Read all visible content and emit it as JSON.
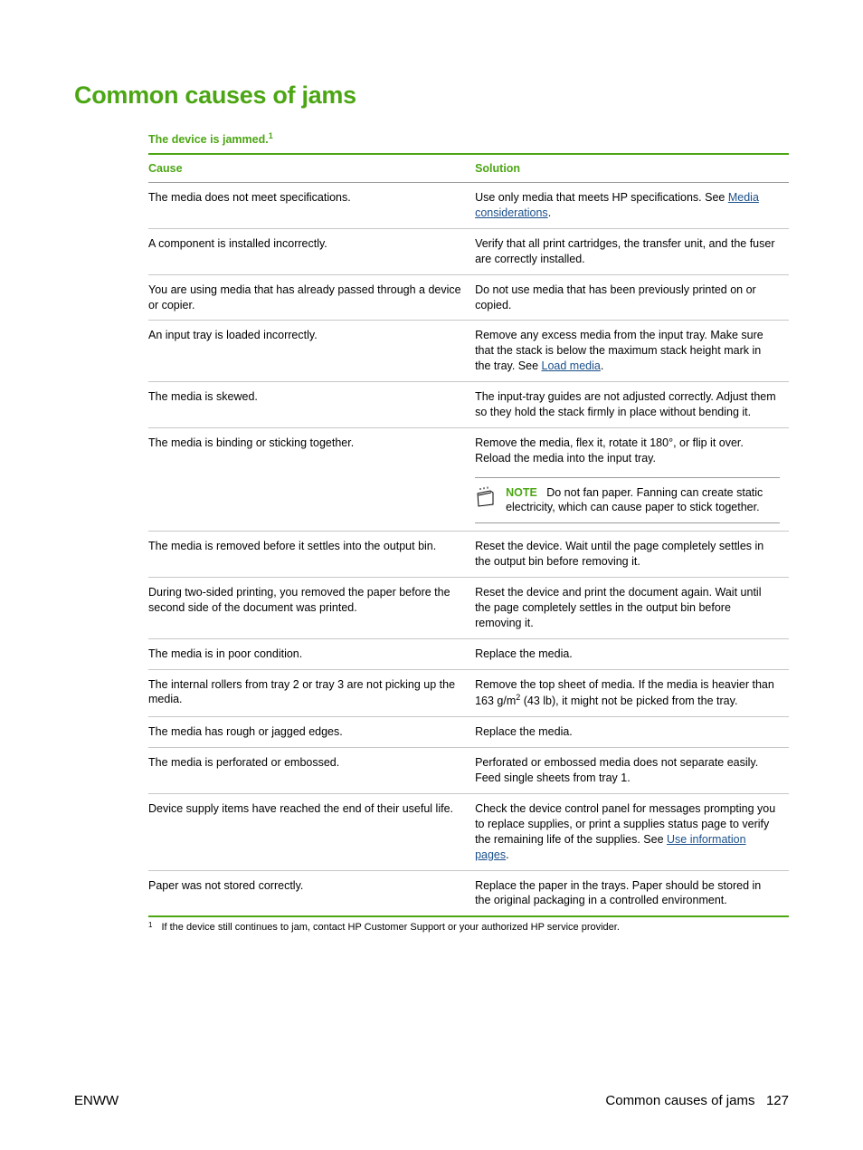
{
  "colors": {
    "accent": "#4ca614",
    "link": "#1a4f8a",
    "rule_thick": "#4ca614",
    "rule_thin": "#c7c7c7",
    "text": "#000000",
    "background": "#ffffff"
  },
  "title": "Common causes of jams",
  "table": {
    "caption": "The device is jammed.",
    "caption_sup": "1",
    "headers": {
      "cause": "Cause",
      "solution": "Solution"
    },
    "rows": [
      {
        "cause": "The media does not meet specifications.",
        "solution_pre": "Use only media that meets HP specifications. See ",
        "solution_link": "Media considerations",
        "solution_post": "."
      },
      {
        "cause": "A component is installed incorrectly.",
        "solution": "Verify that all print cartridges, the transfer unit, and the fuser are correctly installed."
      },
      {
        "cause": "You are using media that has already passed through a device or copier.",
        "solution": "Do not use media that has been previously printed on or copied."
      },
      {
        "cause": "An input tray is loaded incorrectly.",
        "solution_pre": "Remove any excess media from the input tray. Make sure that the stack is below the maximum stack height mark in the tray. See ",
        "solution_link": "Load media",
        "solution_post": "."
      },
      {
        "cause": "The media is skewed.",
        "solution": "The input-tray guides are not adjusted correctly. Adjust them so they hold the stack firmly in place without bending it."
      },
      {
        "cause": "The media is binding or sticking together.",
        "solution": "Remove the media, flex it, rotate it 180°, or flip it over. Reload the media into the input tray.",
        "note_label": "NOTE",
        "note_text": "Do not fan paper. Fanning can create static electricity, which can cause paper to stick together."
      },
      {
        "cause": "The media is removed before it settles into the output bin.",
        "solution": "Reset the device. Wait until the page completely settles in the output bin before removing it."
      },
      {
        "cause": "During two-sided printing, you removed the paper before the second side of the document was printed.",
        "solution": "Reset the device and print the document again. Wait until the page completely settles in the output bin before removing it."
      },
      {
        "cause": "The media is in poor condition.",
        "solution": "Replace the media."
      },
      {
        "cause": "The internal rollers from tray 2 or tray 3 are not picking up the media.",
        "solution_html": "Remove the top sheet of media. If the media is heavier than 163 g/m<sup class='sq'>2</sup> (43 lb), it might not be picked from the tray."
      },
      {
        "cause": "The media has rough or jagged edges.",
        "solution": "Replace the media."
      },
      {
        "cause": "The media is perforated or embossed.",
        "solution": "Perforated or embossed media does not separate easily. Feed single sheets from tray 1."
      },
      {
        "cause": "Device supply items have reached the end of their useful life.",
        "solution_pre": "Check the device control panel for messages prompting you to replace supplies, or print a supplies status page to verify the remaining life of the supplies. See ",
        "solution_link": "Use information pages",
        "solution_post": "."
      },
      {
        "cause": "Paper was not stored correctly.",
        "solution": "Replace the paper in the trays. Paper should be stored in the original packaging in a controlled environment."
      }
    ],
    "footnote_mark": "1",
    "footnote": "If the device still continues to jam, contact HP Customer Support or your authorized HP service provider."
  },
  "footer": {
    "left": "ENWW",
    "right_text": "Common causes of jams",
    "page_number": "127"
  }
}
